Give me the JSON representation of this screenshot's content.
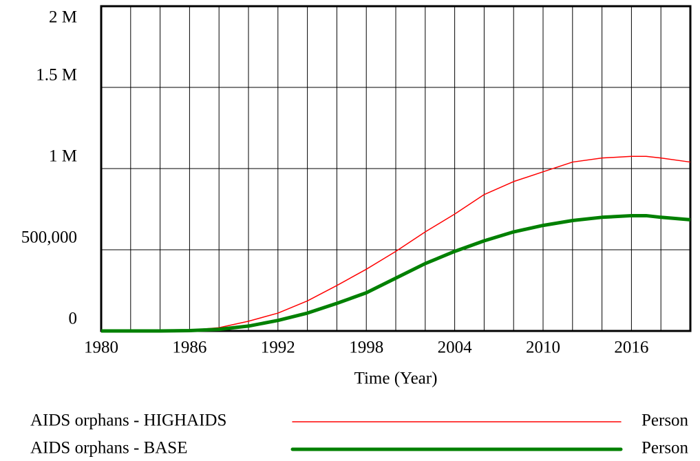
{
  "chart_data": {
    "type": "line",
    "xlabel": "Time (Year)",
    "x": [
      1980,
      1982,
      1984,
      1986,
      1988,
      1990,
      1992,
      1994,
      1996,
      1998,
      2000,
      2002,
      2004,
      2006,
      2008,
      2010,
      2012,
      2014,
      2016,
      2017,
      2018,
      2020
    ],
    "series": [
      {
        "name": "AIDS orphans - HIGHAIDS",
        "unit": "Person",
        "color": "#ff0000",
        "width": 1.5,
        "values": [
          0,
          0,
          0,
          5000,
          20000,
          60000,
          110000,
          185000,
          280000,
          380000,
          490000,
          610000,
          720000,
          840000,
          920000,
          980000,
          1040000,
          1065000,
          1075000,
          1075000,
          1065000,
          1040000
        ]
      },
      {
        "name": "AIDS orphans - BASE",
        "unit": "Person",
        "color": "#008000",
        "width": 5,
        "values": [
          0,
          0,
          0,
          2000,
          10000,
          30000,
          65000,
          110000,
          170000,
          235000,
          325000,
          415000,
          490000,
          555000,
          610000,
          650000,
          680000,
          700000,
          710000,
          710000,
          700000,
          685000
        ]
      }
    ],
    "xlim": [
      1980,
      2020
    ],
    "xticks": [
      1980,
      1986,
      1992,
      1998,
      2004,
      2010,
      2016
    ],
    "x_grid": [
      1980,
      1982,
      1984,
      1986,
      1988,
      1990,
      1992,
      1994,
      1996,
      1998,
      2000,
      2002,
      2004,
      2006,
      2008,
      2010,
      2012,
      2014,
      2016,
      2018,
      2020
    ],
    "ylim": [
      0,
      2000000
    ],
    "yticks": [
      0,
      {
        "value": 500000,
        "label": "500,000"
      },
      {
        "value": 1000000,
        "label": "1 M"
      },
      {
        "value": 1500000,
        "label": "1.5 M"
      },
      {
        "value": 2000000,
        "label": "2 M"
      }
    ],
    "grid": true
  }
}
